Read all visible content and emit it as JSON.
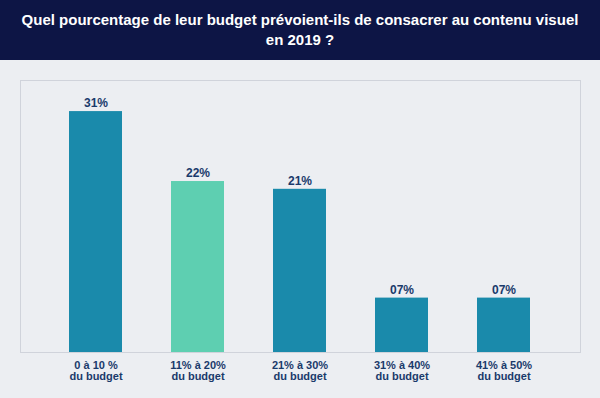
{
  "chart_data": {
    "type": "bar",
    "title": "Quel pourcentage de leur budget prévoient-ils de consacrer au contenu visuel en 2019 ?",
    "categories": [
      "0 à 10 %\ndu budget",
      "11% à 20%\ndu budget",
      "21% à 30%\ndu budget",
      "31% à 40%\ndu budget",
      "41% à 50%\ndu budget"
    ],
    "values": [
      31,
      22,
      21,
      7,
      7
    ],
    "value_labels": [
      "31%",
      "22%",
      "21%",
      "07%",
      "07%"
    ],
    "colors": [
      "#1a8aab",
      "#5ecfb1",
      "#1a8aab",
      "#1a8aab",
      "#1a8aab"
    ],
    "ylim": [
      0,
      35
    ],
    "yticks": [],
    "grid": false,
    "data_labels": true,
    "tick_labels": "x"
  }
}
